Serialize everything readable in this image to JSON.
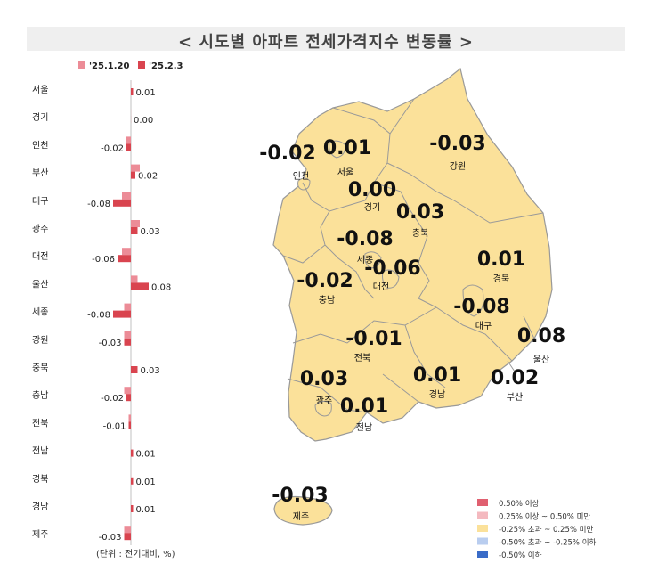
{
  "title": "< 시도별 아파트 전세가격지수 변동률 >",
  "unit_note": "(단위 : 전기대비, %)",
  "colors": {
    "prev": "#ec8c97",
    "curr": "#d9444f",
    "land": "#fbe19a",
    "border": "#999999",
    "title_bg": "#efefef"
  },
  "chart_data": {
    "type": "bar",
    "orientation": "horizontal",
    "title": "< 시도별 아파트 전세가격지수 변동률 >",
    "categories": [
      "서울",
      "경기",
      "인천",
      "부산",
      "대구",
      "광주",
      "대전",
      "울산",
      "세종",
      "강원",
      "충북",
      "충남",
      "전북",
      "전남",
      "경북",
      "경남",
      "제주"
    ],
    "series": [
      {
        "name": "'25.1.20",
        "values": [
          0.0,
          0.0,
          -0.02,
          0.04,
          -0.04,
          0.04,
          -0.04,
          0.03,
          -0.03,
          -0.03,
          0.0,
          -0.03,
          -0.01,
          0.0,
          0.0,
          0.0,
          -0.03
        ]
      },
      {
        "name": "'25.2.3",
        "values": [
          0.01,
          0.0,
          -0.02,
          0.02,
          -0.08,
          0.03,
          -0.06,
          0.08,
          -0.08,
          -0.03,
          0.03,
          -0.02,
          -0.01,
          0.01,
          0.01,
          0.01,
          -0.03
        ]
      }
    ],
    "data_labels": [
      "0.01",
      "0.00",
      "-0.02",
      "0.02",
      "-0.08",
      "0.03",
      "-0.06",
      "0.08",
      "-0.08",
      "-0.03",
      "0.03",
      "-0.02",
      "-0.01",
      "0.01",
      "0.01",
      "0.01",
      "-0.03"
    ],
    "xlabel": "",
    "ylabel": "",
    "grid": false,
    "legend": "top"
  },
  "map_labels": [
    {
      "name": "인천",
      "value": "-0.02"
    },
    {
      "name": "서울",
      "value": "0.01"
    },
    {
      "name": "강원",
      "value": "-0.03"
    },
    {
      "name": "경기",
      "value": "0.00"
    },
    {
      "name": "충북",
      "value": "0.03"
    },
    {
      "name": "세종",
      "value": "-0.08"
    },
    {
      "name": "대전",
      "value": "-0.06"
    },
    {
      "name": "충남",
      "value": "-0.02"
    },
    {
      "name": "경북",
      "value": "0.01"
    },
    {
      "name": "대구",
      "value": "-0.08"
    },
    {
      "name": "울산",
      "value": "0.08"
    },
    {
      "name": "전북",
      "value": "-0.01"
    },
    {
      "name": "광주",
      "value": "0.03"
    },
    {
      "name": "경남",
      "value": "0.01"
    },
    {
      "name": "부산",
      "value": "0.02"
    },
    {
      "name": "전남",
      "value": "0.01"
    },
    {
      "name": "제주",
      "value": "-0.03"
    }
  ],
  "map_legend": [
    {
      "label": "0.50% 이상",
      "color": "#e06070"
    },
    {
      "label": "0.25% 이상 ~ 0.50% 미만",
      "color": "#f4b9bf"
    },
    {
      "label": "-0.25% 초과 ~ 0.25% 미만",
      "color": "#fbe19a"
    },
    {
      "label": "-0.50% 초과 ~ -0.25% 이하",
      "color": "#b9cdef"
    },
    {
      "label": "-0.50% 이하",
      "color": "#3a6cc8"
    }
  ]
}
